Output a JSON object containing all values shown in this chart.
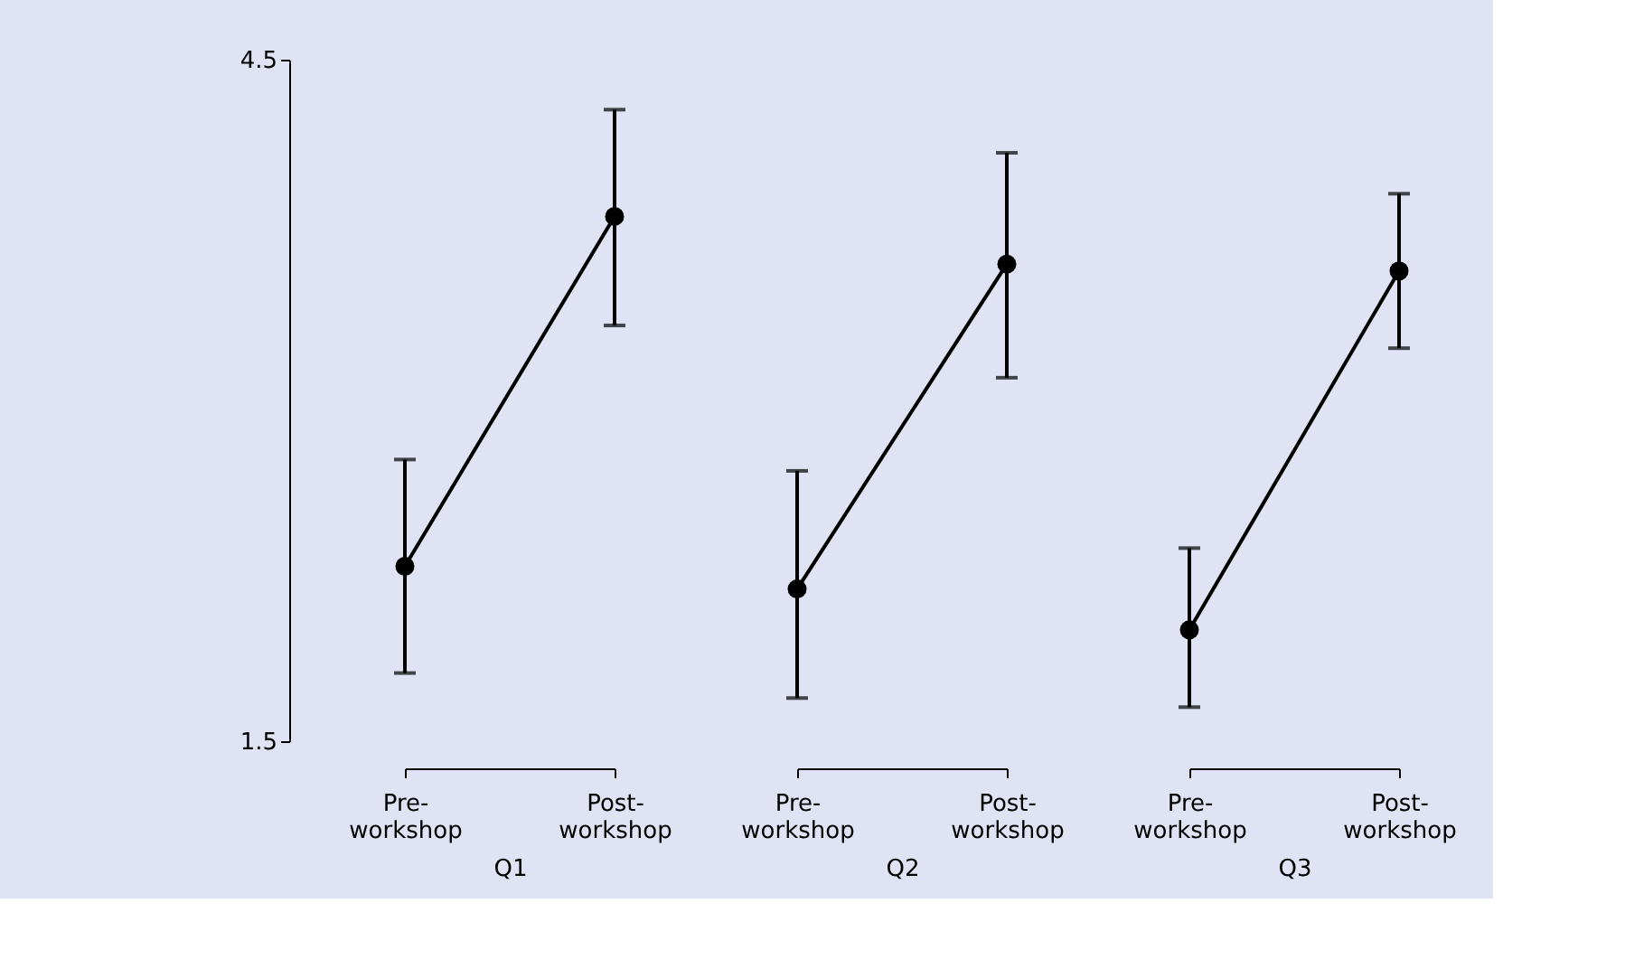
{
  "chart_data": [
    {
      "type": "line",
      "xlabel": "Q1",
      "categories": [
        "Pre-\nworkshop",
        "Post-\nworkshop"
      ],
      "series": [
        {
          "color": "#000000",
          "values": [
            2.27,
            3.81
          ],
          "errors": [
            [
              1.8,
              2.74
            ],
            [
              3.33,
              4.28
            ]
          ]
        }
      ],
      "ylim": [
        1.5,
        4.5
      ],
      "yticks": [
        1.5,
        4.5
      ],
      "marker": "circle",
      "line_style": "solid",
      "grid": false
    },
    {
      "type": "line",
      "xlabel": "Q2",
      "categories": [
        "Pre-\nworkshop",
        "Post-\nworkshop"
      ],
      "series": [
        {
          "color": "#000000",
          "values": [
            2.17,
            3.6
          ],
          "errors": [
            [
              1.69,
              2.69
            ],
            [
              3.1,
              4.09
            ]
          ]
        }
      ],
      "ylim": [
        1.5,
        4.5
      ],
      "tick_labels": "x",
      "marker": "circle",
      "line_style": "solid",
      "grid": false
    },
    {
      "type": "line",
      "xlabel": "Q3",
      "categories": [
        "Pre-\nworkshop",
        "Post-\nworkshop"
      ],
      "series": [
        {
          "color": "#000000",
          "values": [
            1.99,
            3.57
          ],
          "errors": [
            [
              1.65,
              2.35
            ],
            [
              3.23,
              3.91
            ]
          ]
        }
      ],
      "ylim": [
        1.5,
        4.5
      ],
      "tick_labels": "x",
      "marker": "circle",
      "line_style": "solid",
      "grid": false
    }
  ]
}
